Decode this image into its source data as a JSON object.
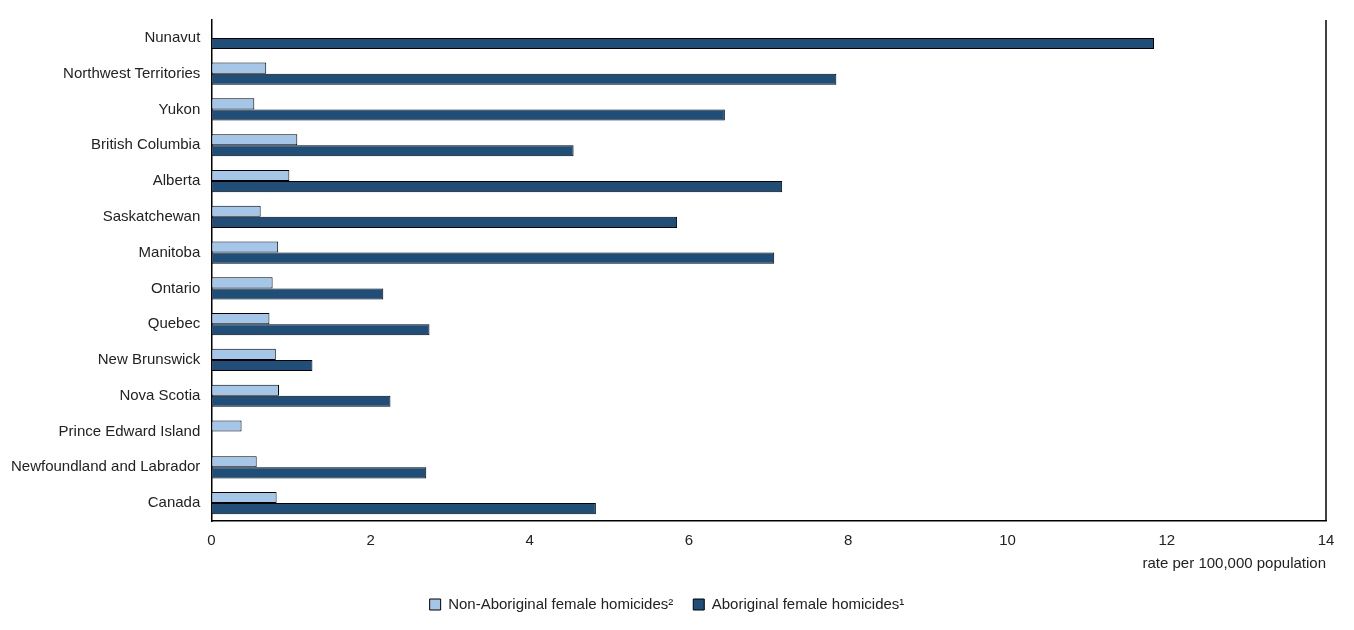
{
  "chart_data": {
    "type": "bar",
    "orientation": "horizontal",
    "xlabel": "rate per 100,000 population",
    "categories": [
      "Nunavut",
      "Northwest Territories",
      "Yukon",
      "British Columbia",
      "Alberta",
      "Saskatchewan",
      "Manitoba",
      "Ontario",
      "Quebec",
      "New Brunswick",
      "Nova Scotia",
      "Prince Edward Island",
      "Newfoundland and Labrador",
      "Canada"
    ],
    "series": [
      {
        "name": "Non-Aboriginal female homicides²",
        "color": "#a3c6e9",
        "values": [
          null,
          0.69,
          0.54,
          1.08,
          0.98,
          0.62,
          0.84,
          0.77,
          0.73,
          0.81,
          0.85,
          0.38,
          0.57,
          0.82
        ]
      },
      {
        "name": "Aboriginal female homicides¹",
        "color": "#1f4e79",
        "values": [
          11.84,
          7.85,
          6.45,
          4.55,
          7.17,
          5.85,
          7.07,
          2.16,
          2.74,
          1.27,
          2.25,
          null,
          2.7,
          4.83
        ]
      }
    ],
    "xlim": [
      0,
      14
    ],
    "xticks": [
      0,
      2,
      4,
      6,
      8,
      10,
      12,
      14
    ],
    "grid": false,
    "legend": "bottom"
  }
}
